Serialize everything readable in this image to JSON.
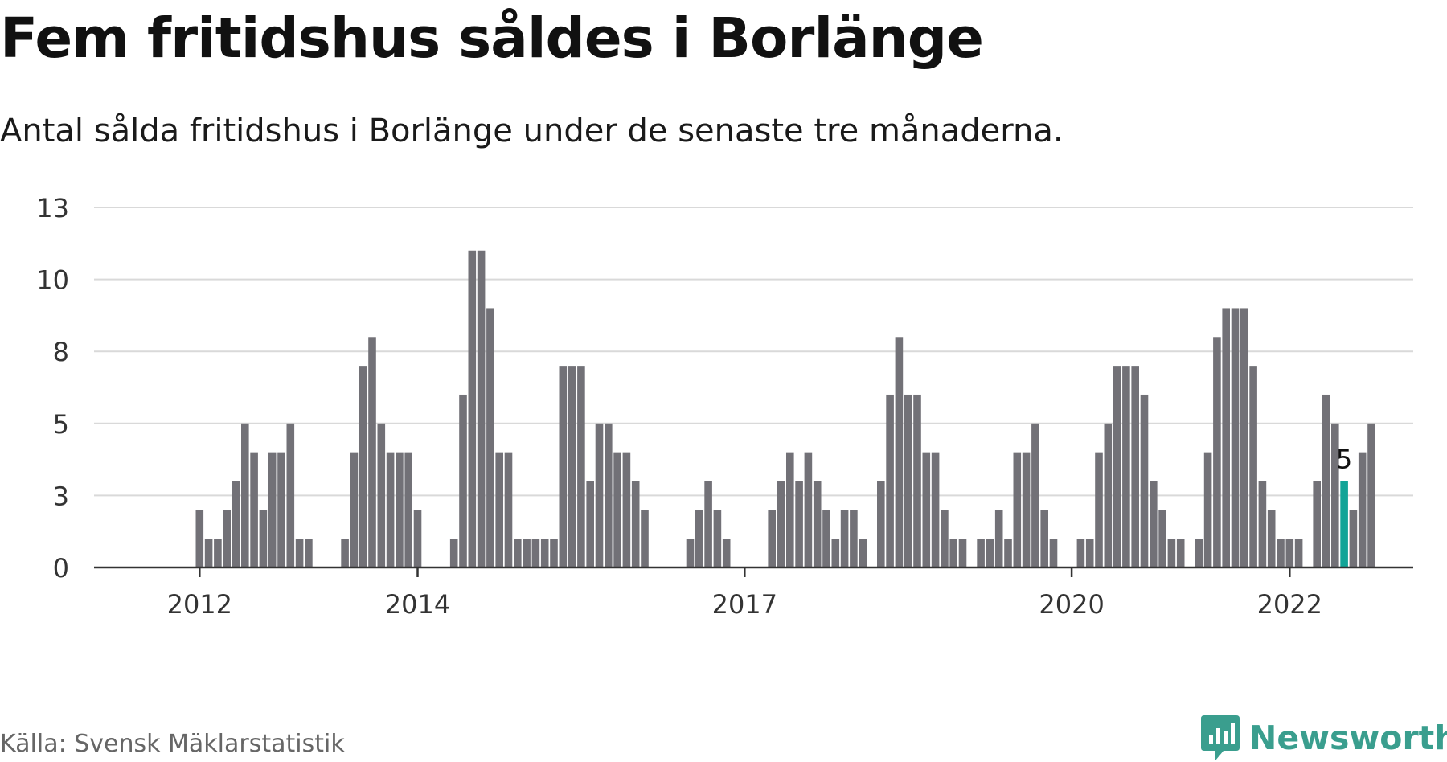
{
  "title": "Fem fritidshus såldes i Borlänge",
  "subtitle": "Antal sålda fritidshus i Borlänge under de senaste tre månaderna.",
  "source": "Källa: Svensk Mäklarstatistik",
  "brand": {
    "name": "Newsworthy",
    "color": "#3a9e8e",
    "icon": "newsworthy-logo-icon"
  },
  "colors": {
    "bar": "#727177",
    "highlight": "#12a497",
    "grid": "#d9d9d9",
    "axis": "#333333"
  },
  "chart_data": {
    "type": "bar",
    "title": "Fem fritidshus såldes i Borlänge",
    "subtitle": "Antal sålda fritidshus i Borlänge under de senaste tre månaderna.",
    "xlabel": "",
    "ylabel": "",
    "ylim": [
      0,
      12.5
    ],
    "grid": true,
    "yticks": [
      {
        "value": 0,
        "label": "0"
      },
      {
        "value": 2.5,
        "label": "3"
      },
      {
        "value": 5,
        "label": "5"
      },
      {
        "value": 7.5,
        "label": "8"
      },
      {
        "value": 10,
        "label": "10"
      },
      {
        "value": 12.5,
        "label": "13"
      }
    ],
    "xticks": [
      {
        "index": 5,
        "label": "2012"
      },
      {
        "index": 29,
        "label": "2014"
      },
      {
        "index": 65,
        "label": "2017"
      },
      {
        "index": 101,
        "label": "2020"
      },
      {
        "index": 125,
        "label": "2022"
      }
    ],
    "values": [
      0,
      0,
      0,
      0,
      0,
      2,
      1,
      1,
      2,
      3,
      5,
      4,
      2,
      4,
      4,
      5,
      1,
      1,
      0,
      0,
      0,
      1,
      4,
      7,
      8,
      5,
      4,
      4,
      4,
      2,
      0,
      0,
      0,
      1,
      6,
      11,
      11,
      9,
      4,
      4,
      1,
      1,
      1,
      1,
      1,
      7,
      7,
      7,
      3,
      5,
      5,
      4,
      4,
      3,
      2,
      0,
      0,
      0,
      0,
      1,
      2,
      3,
      2,
      1,
      0,
      0,
      0,
      0,
      2,
      3,
      4,
      3,
      4,
      3,
      2,
      1,
      2,
      2,
      1,
      0,
      3,
      6,
      8,
      6,
      6,
      4,
      4,
      2,
      1,
      1,
      0,
      1,
      1,
      2,
      1,
      4,
      4,
      5,
      2,
      1,
      0,
      0,
      1,
      1,
      4,
      5,
      7,
      7,
      7,
      6,
      3,
      2,
      1,
      1,
      0,
      1,
      4,
      8,
      9,
      9,
      9,
      7,
      3,
      2,
      1,
      1,
      1,
      0,
      3,
      6,
      5,
      3,
      2,
      4,
      5
    ],
    "highlight_index": 131,
    "highlight_label": "5",
    "series": [
      {
        "name": "",
        "values": "see values"
      }
    ]
  }
}
